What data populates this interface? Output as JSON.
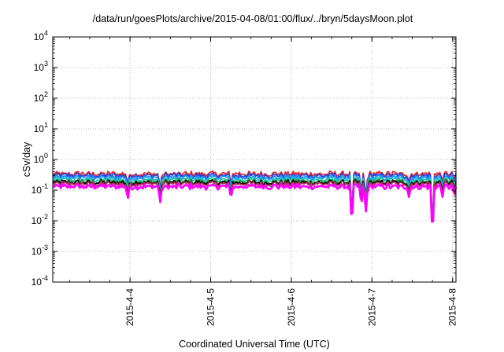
{
  "chart_data": {
    "type": "line",
    "title": "/data/run/goesPlots/archive/2015-04-08/01:00/flux/../bryn/5daysMoon.plot",
    "xlabel": "Coordinated Universal Time (UTC)",
    "ylabel": "cSv/day",
    "yscale": "log",
    "ylim": [
      0.0001,
      10000
    ],
    "y_ticks": [
      {
        "base": "10",
        "exp": "-4",
        "value": 0.0001
      },
      {
        "base": "10",
        "exp": "-3",
        "value": 0.001
      },
      {
        "base": "10",
        "exp": "-2",
        "value": 0.01
      },
      {
        "base": "10",
        "exp": "-1",
        "value": 0.1
      },
      {
        "base": "10",
        "exp": "0",
        "value": 1
      },
      {
        "base": "10",
        "exp": "1",
        "value": 10
      },
      {
        "base": "10",
        "exp": "2",
        "value": 100
      },
      {
        "base": "10",
        "exp": "3",
        "value": 1000
      },
      {
        "base": "10",
        "exp": "4",
        "value": 10000
      }
    ],
    "xlim": [
      "2015-04-03T01:00",
      "2015-04-08T01:00"
    ],
    "x_ticks": [
      {
        "label": "2015-4-4",
        "value": "2015-04-04T00:00"
      },
      {
        "label": "2015-4-5",
        "value": "2015-04-05T00:00"
      },
      {
        "label": "2015-4-6",
        "value": "2015-04-06T00:00"
      },
      {
        "label": "2015-4-7",
        "value": "2015-04-07T00:00"
      },
      {
        "label": "2015-4-8",
        "value": "2015-04-08T00:00"
      }
    ],
    "grid": true,
    "legend": "none",
    "series": [
      {
        "color": "#e8262a",
        "base": 0.34
      },
      {
        "color": "#2a3fd6",
        "base": 0.3
      },
      {
        "color": "#1e90ff",
        "base": 0.26
      },
      {
        "color": "#1fc9b8",
        "base": 0.22
      },
      {
        "color": "#2e8b2e",
        "base": 0.19
      },
      {
        "color": "#000000",
        "base": 0.175
      },
      {
        "color": "#b03060",
        "base": 0.16
      },
      {
        "color": "#ff00ff",
        "base": 0.13
      }
    ],
    "dips": [
      {
        "t": "2015-04-03T23:20",
        "value": 0.05
      },
      {
        "t": "2015-04-04T09:00",
        "value": 0.04
      },
      {
        "t": "2015-04-05T06:00",
        "value": 0.055
      },
      {
        "t": "2015-04-06T18:00",
        "value": 0.006
      },
      {
        "t": "2015-04-06T20:50",
        "value": 0.03
      },
      {
        "t": "2015-04-06T22:10",
        "value": 0.018
      },
      {
        "t": "2015-04-07T11:00",
        "value": 0.06
      },
      {
        "t": "2015-04-07T18:00",
        "value": 0.0025
      },
      {
        "t": "2015-04-07T21:00",
        "value": 0.06
      },
      {
        "t": "2015-04-08T00:30",
        "value": 0.07
      }
    ]
  }
}
